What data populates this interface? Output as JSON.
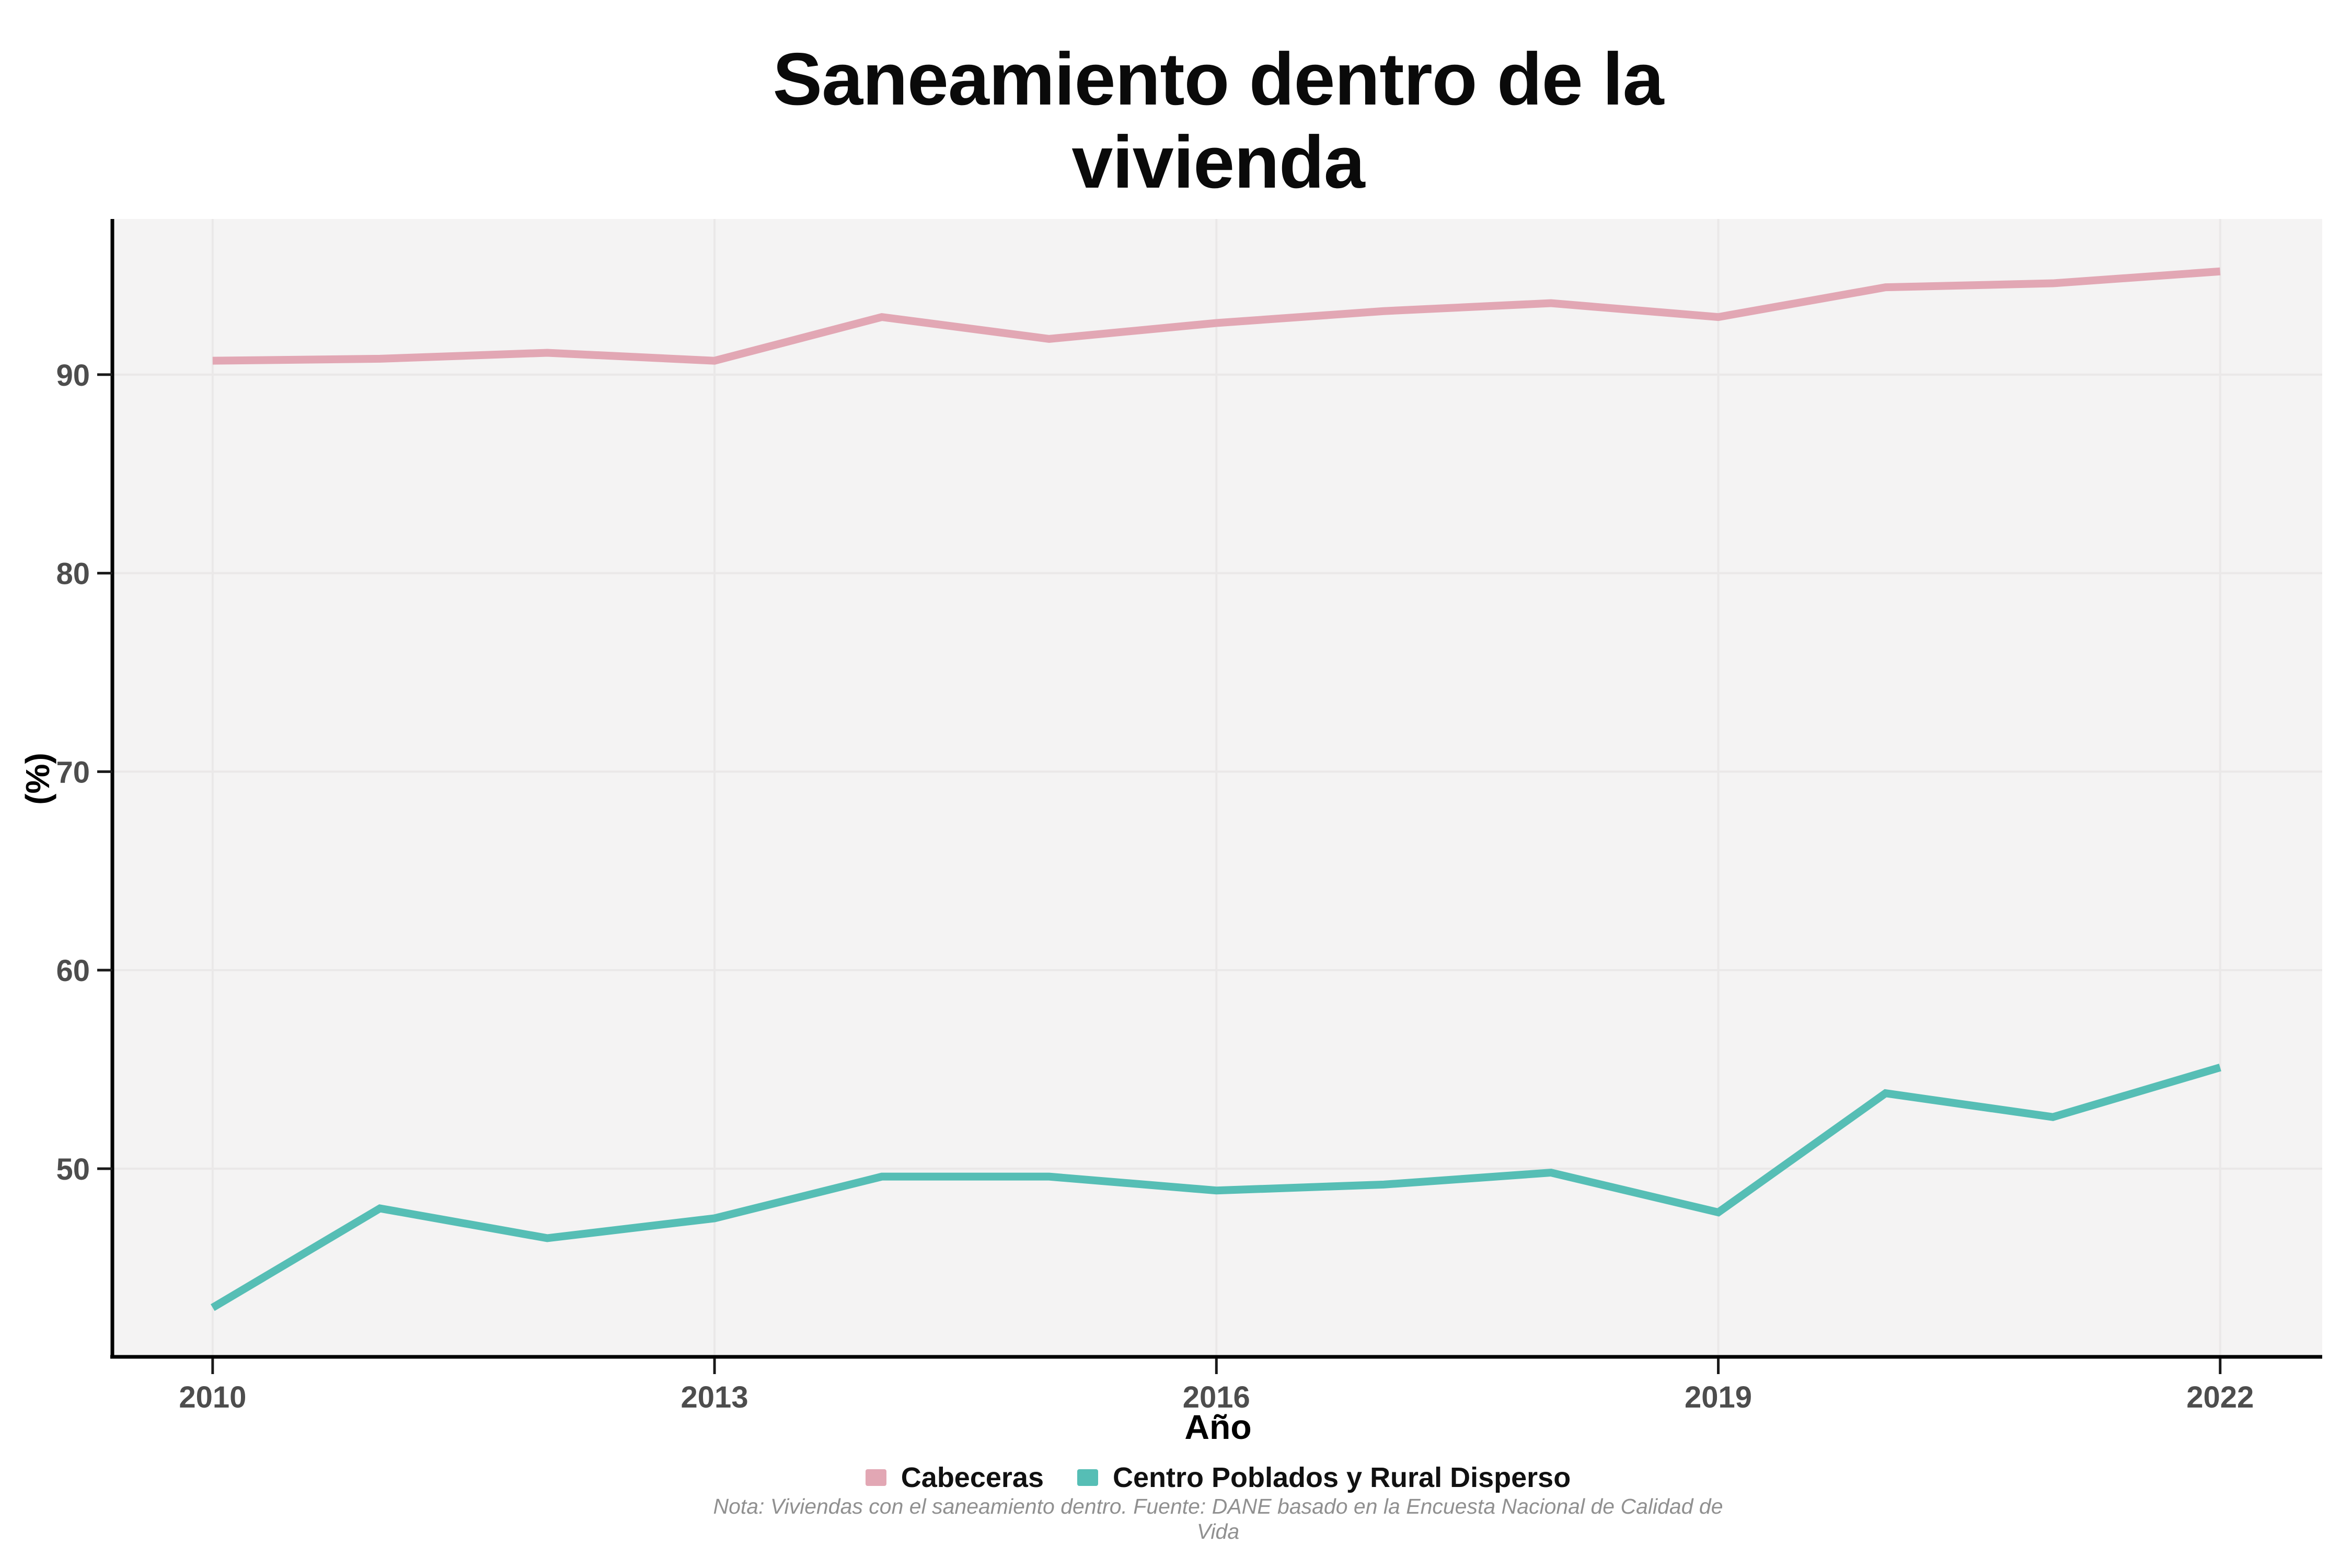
{
  "title_lines": [
    "Saneamiento dentro de la",
    "vivienda"
  ],
  "note_lines": [
    "Nota: Viviendas con el saneamiento dentro. Fuente: DANE basado en la Encuesta Nacional de Calidad de",
    "Vida"
  ],
  "colors": {
    "cabeceras_line": "#E2A7B4",
    "centro_poblados_line": "#56BEB5",
    "panel_background": "#f4f3f3",
    "gridline": "#eae8e8",
    "axis_line": "#000000",
    "axis_tick": "#1a1a1a",
    "axis_text": "#4d4d4d",
    "title_text": "#0a0a0a",
    "note_text": "#909090"
  },
  "chart_data": {
    "type": "line",
    "title": "Saneamiento dentro de la vivienda",
    "xlabel": "Año",
    "ylabel": "(%)",
    "x": [
      2010,
      2011,
      2012,
      2013,
      2014,
      2015,
      2016,
      2017,
      2018,
      2019,
      2020,
      2021,
      2022
    ],
    "series": [
      {
        "name": "Cabeceras",
        "color": "#E2A7B4",
        "values": [
          90.7,
          90.8,
          91.1,
          90.7,
          92.9,
          91.8,
          92.6,
          93.2,
          93.6,
          92.9,
          94.4,
          94.6,
          95.2
        ]
      },
      {
        "name": "Centro Poblados y Rural Disperso",
        "color": "#56BEB5",
        "values": [
          43.0,
          48.0,
          46.5,
          47.5,
          49.6,
          49.6,
          48.9,
          49.2,
          49.8,
          47.8,
          53.8,
          52.6,
          55.1
        ]
      }
    ],
    "x_ticks": [
      2010,
      2013,
      2016,
      2019,
      2022
    ],
    "y_ticks": [
      50,
      60,
      70,
      80,
      90
    ],
    "xlim": [
      2009.41,
      2022.61
    ],
    "ylim": [
      40.6,
      97.84
    ],
    "grid": "major",
    "legend_position": "bottom"
  }
}
